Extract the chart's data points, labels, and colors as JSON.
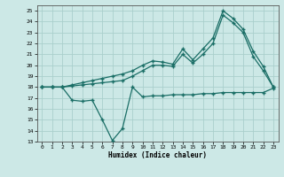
{
  "xlabel": "Humidex (Indice chaleur)",
  "bg_color": "#cce8e6",
  "grid_color": "#aacfcc",
  "line_color": "#1a6e66",
  "xlim": [
    -0.5,
    23.5
  ],
  "ylim": [
    13,
    25.5
  ],
  "xticks": [
    0,
    1,
    2,
    3,
    4,
    5,
    6,
    7,
    8,
    9,
    10,
    11,
    12,
    13,
    14,
    15,
    16,
    17,
    18,
    19,
    20,
    21,
    22,
    23
  ],
  "yticks": [
    13,
    14,
    15,
    16,
    17,
    18,
    19,
    20,
    21,
    22,
    23,
    24,
    25
  ],
  "line1_x": [
    0,
    1,
    2,
    3,
    4,
    5,
    6,
    7,
    8,
    9,
    10,
    11,
    12,
    13,
    14,
    15,
    16,
    17,
    18,
    19,
    20,
    21,
    22,
    23
  ],
  "line1_y": [
    18.0,
    18.0,
    18.0,
    18.2,
    18.4,
    18.6,
    18.8,
    19.0,
    19.2,
    19.5,
    20.0,
    20.4,
    20.3,
    20.1,
    21.5,
    20.5,
    21.5,
    22.5,
    25.0,
    24.3,
    23.3,
    21.3,
    19.9,
    18.0
  ],
  "line2_x": [
    0,
    1,
    2,
    3,
    4,
    5,
    6,
    7,
    8,
    9,
    10,
    11,
    12,
    13,
    14,
    15,
    16,
    17,
    18,
    19,
    20,
    21,
    22,
    23
  ],
  "line2_y": [
    18.0,
    18.0,
    18.0,
    18.1,
    18.2,
    18.3,
    18.4,
    18.5,
    18.6,
    19.0,
    19.5,
    20.0,
    20.0,
    19.9,
    21.0,
    20.2,
    21.0,
    22.0,
    24.6,
    23.9,
    23.0,
    20.8,
    19.5,
    18.0
  ],
  "line3_x": [
    0,
    1,
    2,
    3,
    4,
    5,
    6,
    7,
    8,
    9,
    10,
    11,
    12,
    13,
    14,
    15,
    16,
    17,
    18,
    19,
    20,
    21,
    22,
    23
  ],
  "line3_y": [
    18.0,
    18.0,
    18.0,
    16.8,
    16.7,
    16.8,
    15.0,
    13.1,
    14.2,
    18.0,
    17.1,
    17.2,
    17.2,
    17.3,
    17.3,
    17.3,
    17.4,
    17.4,
    17.5,
    17.5,
    17.5,
    17.5,
    17.5,
    17.9
  ]
}
